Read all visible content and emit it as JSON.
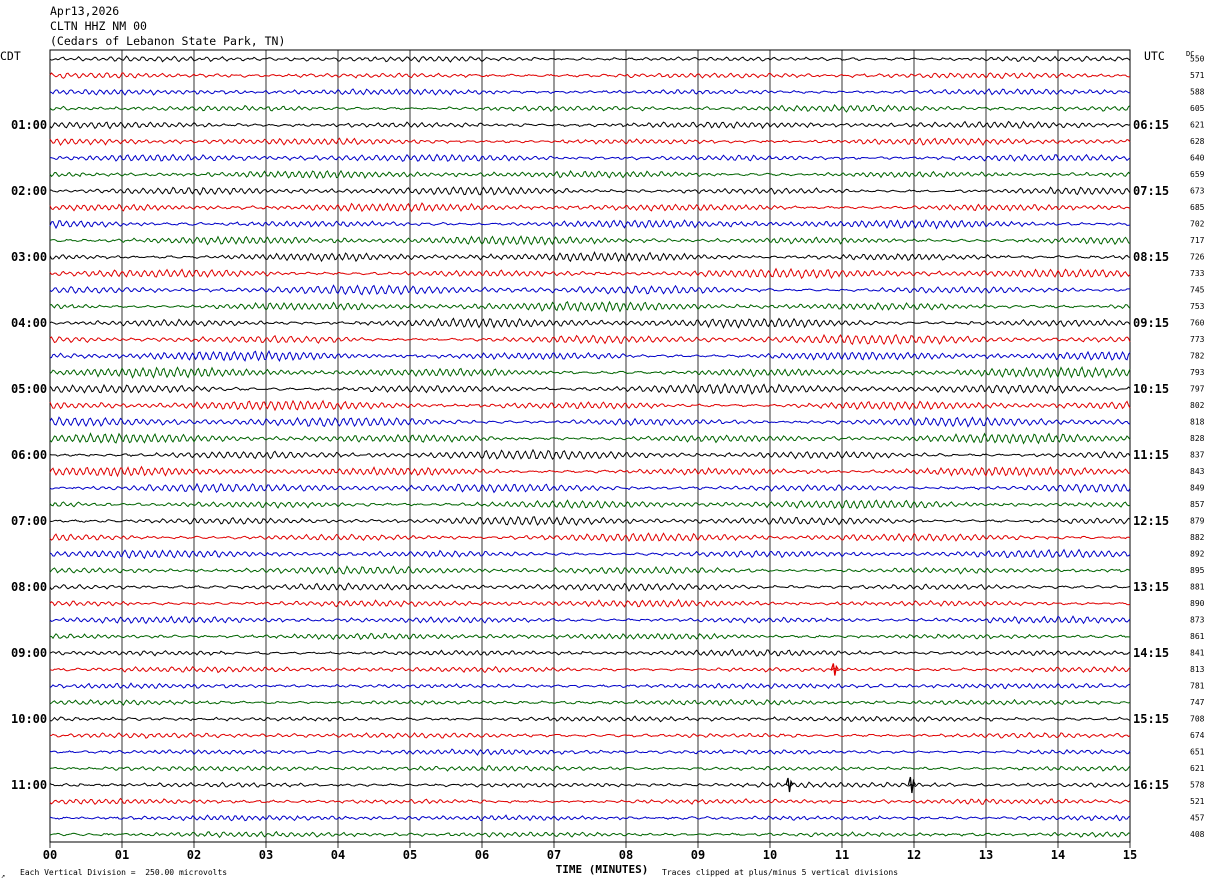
{
  "header": {
    "date": "Apr13,2026",
    "station": "CLTN HHZ NM 00",
    "location": "(Cedars of Lebanon State Park, TN)"
  },
  "left_tz": "CDT",
  "right_tz": "UTC",
  "dc_label": "DC",
  "footer": {
    "scale_note": "Each Vertical Division =  250.00 microvolts",
    "clip_note": "Traces clipped at plus/minus 5 vertical divisions",
    "corner_mark": "↗"
  },
  "colors": {
    "black": "#000000",
    "red": "#e00000",
    "blue": "#0000c8",
    "green": "#006400",
    "grid": "#000000"
  },
  "chart_data": {
    "type": "line",
    "title": "",
    "xlabel": "TIME (MINUTES)",
    "xlim": [
      0,
      15
    ],
    "x_ticks": [
      "00",
      "01",
      "02",
      "03",
      "04",
      "05",
      "06",
      "07",
      "08",
      "09",
      "10",
      "11",
      "12",
      "13",
      "14",
      "15"
    ],
    "left_hour_labels": [
      "01:00",
      "02:00",
      "03:00",
      "04:00",
      "05:00",
      "06:00",
      "07:00",
      "08:00",
      "09:00",
      "10:00",
      "11:00"
    ],
    "right_hour_labels": [
      "06:15",
      "07:15",
      "08:15",
      "09:15",
      "10:15",
      "11:15",
      "12:15",
      "13:15",
      "14:15",
      "15:15",
      "16:15"
    ],
    "trace_color_cycle": [
      "black",
      "red",
      "blue",
      "green"
    ],
    "dc_offsets": [
      550,
      571,
      588,
      605,
      621,
      628,
      640,
      659,
      673,
      685,
      702,
      717,
      726,
      733,
      745,
      753,
      760,
      773,
      782,
      793,
      797,
      802,
      818,
      828,
      837,
      843,
      849,
      857,
      879,
      882,
      892,
      895,
      881,
      890,
      873,
      861,
      841,
      813,
      781,
      747,
      708,
      674,
      651,
      621,
      578,
      521,
      457,
      408
    ]
  }
}
